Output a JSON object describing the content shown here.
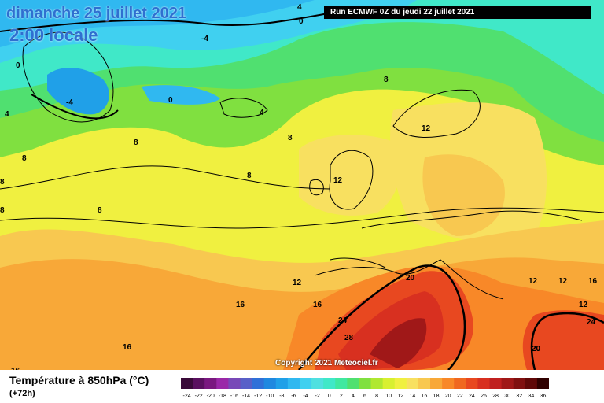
{
  "header": {
    "date": "dimanche 25 juillet 2021",
    "time": "2:00 locale",
    "run": "Run ECMWF 0Z du jeudi 22 juillet 2021"
  },
  "footer": {
    "title": "Température à 850hPa (°C)",
    "subtitle": "(+72h)",
    "copyright": "Copyright 2021 Meteociel.fr"
  },
  "legend": {
    "ticks": [
      "-24",
      "-22",
      "-20",
      "-18",
      "-16",
      "-14",
      "-12",
      "-10",
      "-8",
      "-6",
      "-4",
      "-2",
      "0",
      "2",
      "4",
      "6",
      "8",
      "10",
      "12",
      "14",
      "16",
      "18",
      "20",
      "22",
      "24",
      "26",
      "28",
      "30",
      "32",
      "34",
      "36"
    ],
    "colors": [
      "#3a0a3a",
      "#5a1060",
      "#7a1880",
      "#9a28a8",
      "#7848b8",
      "#5860c8",
      "#3070d8",
      "#1f88e0",
      "#20a0e8",
      "#30b8f0",
      "#40d0f0",
      "#50e0e0",
      "#40e8c8",
      "#40e8a0",
      "#50e070",
      "#80e040",
      "#b0e830",
      "#d8f030",
      "#f0f040",
      "#f8e060",
      "#f8c850",
      "#f8a838",
      "#f88828",
      "#f06820",
      "#e84820",
      "#d83020",
      "#c02020",
      "#a01818",
      "#801010",
      "#600808",
      "#300000"
    ]
  },
  "map_labels": [
    {
      "text": "4"
    },
    {
      "text": "0"
    },
    {
      "text": "-4"
    },
    {
      "text": "0"
    },
    {
      "text": "-4"
    },
    {
      "text": "0"
    },
    {
      "text": "4"
    },
    {
      "text": "4"
    },
    {
      "text": "8"
    },
    {
      "text": "8"
    },
    {
      "text": "8"
    },
    {
      "text": "8"
    },
    {
      "text": "8"
    },
    {
      "text": "8"
    },
    {
      "text": "8"
    },
    {
      "text": "8"
    },
    {
      "text": "12"
    },
    {
      "text": "12"
    },
    {
      "text": "12"
    },
    {
      "text": "12"
    },
    {
      "text": "12"
    },
    {
      "text": "12"
    },
    {
      "text": "16"
    },
    {
      "text": "16"
    },
    {
      "text": "16"
    },
    {
      "text": "16"
    },
    {
      "text": "16"
    },
    {
      "text": "20"
    },
    {
      "text": "20"
    },
    {
      "text": "24"
    },
    {
      "text": "24"
    },
    {
      "text": "28"
    },
    {
      "text": "20"
    }
  ]
}
